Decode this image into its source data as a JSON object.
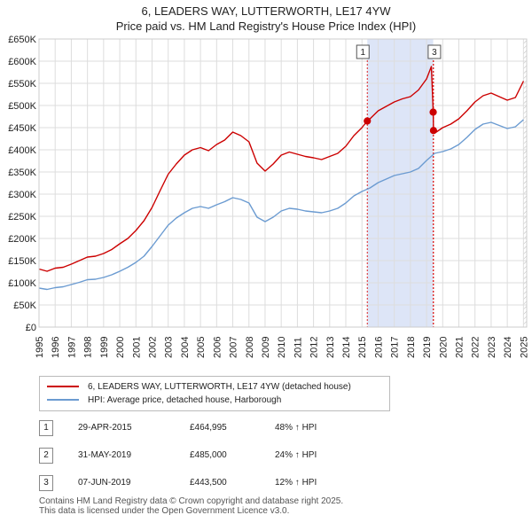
{
  "title_line1": "6, LEADERS WAY, LUTTERWORTH, LE17 4YW",
  "title_line2": "Price paid vs. HM Land Registry's House Price Index (HPI)",
  "chart_data": {
    "type": "line",
    "title": "6, LEADERS WAY, LUTTERWORTH, LE17 4YW — Price paid vs. HM Land Registry's House Price Index (HPI)",
    "xlabel": "",
    "ylabel": "",
    "xlim": [
      1995,
      2025.2
    ],
    "ylim": [
      0,
      650000
    ],
    "x_ticks": [
      "1995",
      "1996",
      "1997",
      "1998",
      "1999",
      "2000",
      "2001",
      "2002",
      "2003",
      "2004",
      "2005",
      "2006",
      "2007",
      "2008",
      "2009",
      "2010",
      "2011",
      "2012",
      "2013",
      "2014",
      "2015",
      "2016",
      "2017",
      "2018",
      "2019",
      "2020",
      "2021",
      "2022",
      "2023",
      "2024",
      "2025"
    ],
    "y_ticks": [
      {
        "value": 0,
        "label": "£0"
      },
      {
        "value": 50000,
        "label": "£50K"
      },
      {
        "value": 100000,
        "label": "£100K"
      },
      {
        "value": 150000,
        "label": "£150K"
      },
      {
        "value": 200000,
        "label": "£200K"
      },
      {
        "value": 250000,
        "label": "£250K"
      },
      {
        "value": 300000,
        "label": "£300K"
      },
      {
        "value": 350000,
        "label": "£350K"
      },
      {
        "value": 400000,
        "label": "£400K"
      },
      {
        "value": 450000,
        "label": "£450K"
      },
      {
        "value": 500000,
        "label": "£500K"
      },
      {
        "value": 550000,
        "label": "£550K"
      },
      {
        "value": 600000,
        "label": "£600K"
      },
      {
        "value": 650000,
        "label": "£650K"
      }
    ],
    "grid": true,
    "shaded_regions": [
      {
        "from": 2015.33,
        "to": 2019.41,
        "color": "#dde5f7"
      }
    ],
    "event_lines": [
      {
        "label": "1",
        "x": 2015.33
      },
      {
        "label": "2",
        "x": 2019.41
      },
      {
        "label": "3",
        "x": 2019.43
      }
    ],
    "hatch_after_x": 2025.0,
    "event_markers": [
      {
        "label": "1",
        "x": 2015.33,
        "y": 464995
      },
      {
        "label": "2",
        "x": 2019.41,
        "y": 485000
      },
      {
        "label": "3",
        "x": 2019.43,
        "y": 443500
      }
    ],
    "series": [
      {
        "name": "6, LEADERS WAY, LUTTERWORTH, LE17 4YW (detached house)",
        "color": "#cc0000",
        "x": [
          1995.0,
          1995.5,
          1996.0,
          1996.5,
          1997.0,
          1997.5,
          1998.0,
          1998.5,
          1999.0,
          1999.5,
          2000.0,
          2000.5,
          2001.0,
          2001.5,
          2002.0,
          2002.5,
          2003.0,
          2003.5,
          2004.0,
          2004.5,
          2005.0,
          2005.5,
          2006.0,
          2006.5,
          2007.0,
          2007.5,
          2008.0,
          2008.5,
          2009.0,
          2009.5,
          2010.0,
          2010.5,
          2011.0,
          2011.5,
          2012.0,
          2012.5,
          2013.0,
          2013.5,
          2014.0,
          2014.5,
          2015.0,
          2015.33,
          2015.5,
          2016.0,
          2016.5,
          2017.0,
          2017.5,
          2018.0,
          2018.5,
          2019.0,
          2019.3,
          2019.41,
          2019.43,
          2019.6,
          2020.0,
          2020.5,
          2021.0,
          2021.5,
          2022.0,
          2022.5,
          2023.0,
          2023.5,
          2024.0,
          2024.5,
          2025.0
        ],
        "values": [
          131000,
          126000,
          133000,
          135000,
          142000,
          150000,
          158000,
          160000,
          166000,
          175000,
          188000,
          200000,
          218000,
          240000,
          270000,
          308000,
          345000,
          368000,
          388000,
          400000,
          405000,
          398000,
          412000,
          422000,
          440000,
          432000,
          418000,
          370000,
          352000,
          368000,
          388000,
          395000,
          390000,
          385000,
          382000,
          378000,
          385000,
          392000,
          408000,
          432000,
          450000,
          464995,
          470000,
          488000,
          498000,
          508000,
          515000,
          520000,
          535000,
          560000,
          588000,
          485000,
          443500,
          440000,
          450000,
          458000,
          470000,
          488000,
          508000,
          522000,
          528000,
          520000,
          512000,
          518000,
          555000
        ]
      },
      {
        "name": "HPI: Average price, detached house, Harborough",
        "color": "#6b9bd1",
        "x": [
          1995.0,
          1995.5,
          1996.0,
          1996.5,
          1997.0,
          1997.5,
          1998.0,
          1998.5,
          1999.0,
          1999.5,
          2000.0,
          2000.5,
          2001.0,
          2001.5,
          2002.0,
          2002.5,
          2003.0,
          2003.5,
          2004.0,
          2004.5,
          2005.0,
          2005.5,
          2006.0,
          2006.5,
          2007.0,
          2007.5,
          2008.0,
          2008.5,
          2009.0,
          2009.5,
          2010.0,
          2010.5,
          2011.0,
          2011.5,
          2012.0,
          2012.5,
          2013.0,
          2013.5,
          2014.0,
          2014.5,
          2015.0,
          2015.5,
          2016.0,
          2016.5,
          2017.0,
          2017.5,
          2018.0,
          2018.5,
          2019.0,
          2019.5,
          2020.0,
          2020.5,
          2021.0,
          2021.5,
          2022.0,
          2022.5,
          2023.0,
          2023.5,
          2024.0,
          2024.5,
          2025.0
        ],
        "values": [
          88000,
          85000,
          89000,
          91000,
          96000,
          101000,
          107000,
          108000,
          112000,
          118000,
          126000,
          135000,
          146000,
          160000,
          182000,
          206000,
          230000,
          246000,
          258000,
          268000,
          272000,
          268000,
          276000,
          283000,
          292000,
          288000,
          280000,
          248000,
          238000,
          248000,
          262000,
          268000,
          266000,
          262000,
          260000,
          258000,
          262000,
          268000,
          280000,
          296000,
          306000,
          314000,
          326000,
          334000,
          342000,
          346000,
          350000,
          358000,
          376000,
          392000,
          396000,
          402000,
          412000,
          428000,
          446000,
          458000,
          462000,
          455000,
          448000,
          452000,
          468000
        ]
      }
    ]
  },
  "legend": {
    "items": [
      {
        "label": "6, LEADERS WAY, LUTTERWORTH, LE17 4YW (detached house)",
        "color": "#cc0000"
      },
      {
        "label": "HPI: Average price, detached house, Harborough",
        "color": "#6b9bd1"
      }
    ]
  },
  "sales": [
    {
      "num": "1",
      "date": "29-APR-2015",
      "price": "£464,995",
      "hpi": "48% ↑ HPI"
    },
    {
      "num": "2",
      "date": "31-MAY-2019",
      "price": "£485,000",
      "hpi": "24% ↑ HPI"
    },
    {
      "num": "3",
      "date": "07-JUN-2019",
      "price": "£443,500",
      "hpi": "12% ↑ HPI"
    }
  ],
  "footer": {
    "line1": "Contains HM Land Registry data © Crown copyright and database right 2025.",
    "line2": "This data is licensed under the Open Government Licence v3.0."
  }
}
